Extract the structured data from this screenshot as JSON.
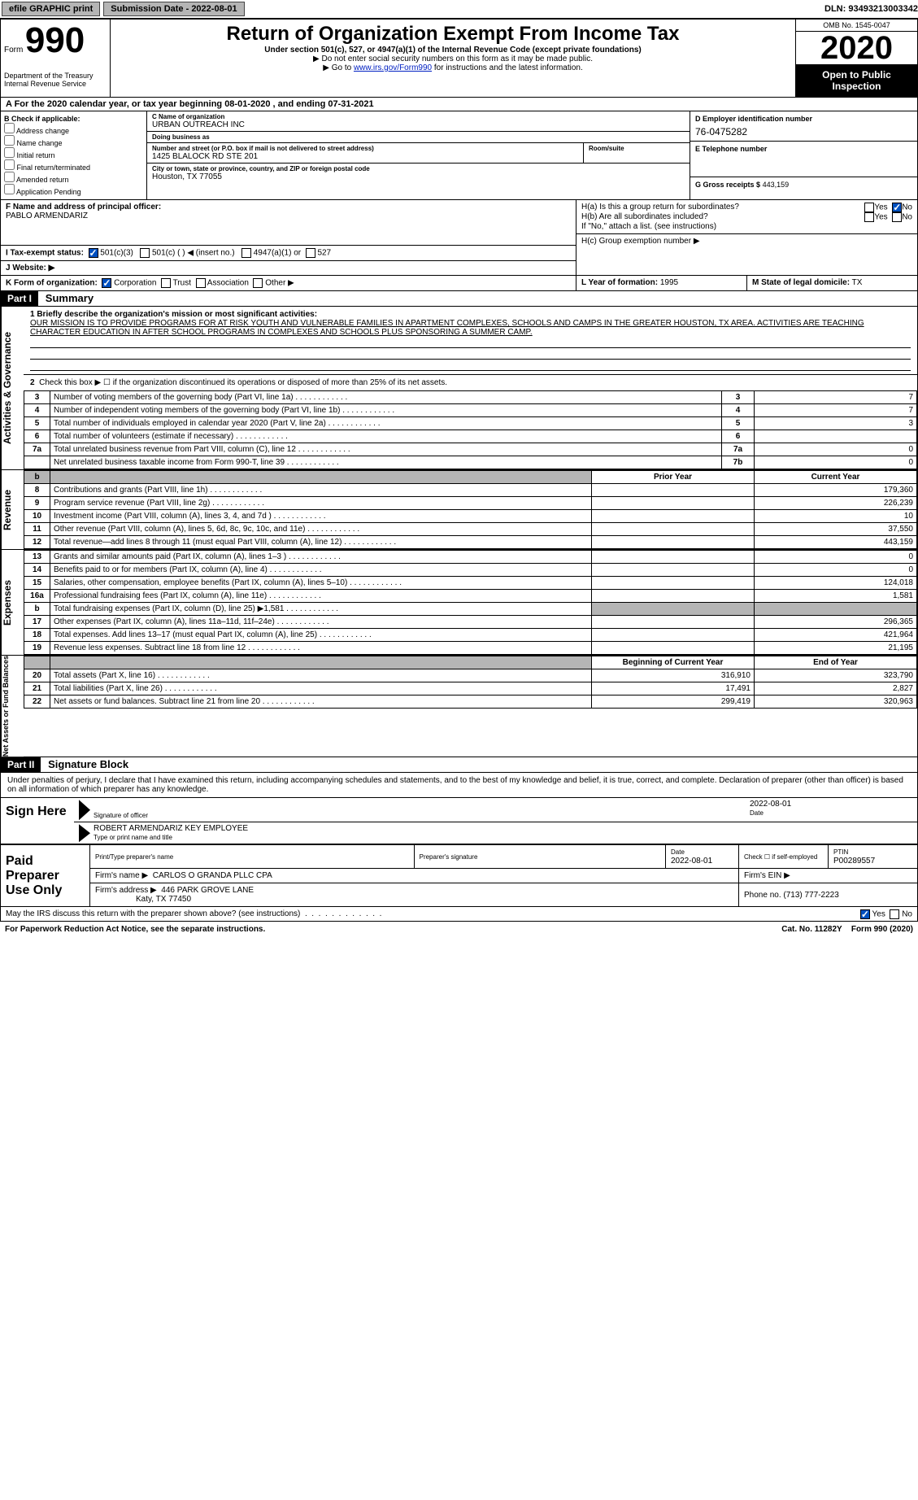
{
  "topbar": {
    "graphic_label": "efile GRAPHIC print",
    "submission_date_label": "Submission Date - 2022-08-01",
    "dln_label": "DLN: 93493213003342"
  },
  "header": {
    "form_word": "Form",
    "form_no": "990",
    "dept1": "Department of the Treasury",
    "dept2": "Internal Revenue Service",
    "title": "Return of Organization Exempt From Income Tax",
    "subtitle": "Under section 501(c), 527, or 4947(a)(1) of the Internal Revenue Code (except private foundations)",
    "note1": "▶ Do not enter social security numbers on this form as it may be made public.",
    "note2_pre": "▶ Go to ",
    "note2_link": "www.irs.gov/Form990",
    "note2_post": " for instructions and the latest information.",
    "omb": "OMB No. 1545-0047",
    "year": "2020",
    "open": "Open to Public Inspection"
  },
  "rowA": "A  For the 2020 calendar year, or tax year beginning 08-01-2020    , and ending 07-31-2021",
  "B": {
    "lbl": "B Check if applicable:",
    "items": [
      "Address change",
      "Name change",
      "Initial return",
      "Final return/terminated",
      "Amended return",
      "Application Pending"
    ]
  },
  "C": {
    "name_lbl": "C Name of organization",
    "name": "URBAN OUTREACH INC",
    "dba_lbl": "Doing business as",
    "dba": "",
    "addr_lbl": "Number and street (or P.O. box if mail is not delivered to street address)",
    "addr": "1425 BLALOCK RD STE 201",
    "room_lbl": "Room/suite",
    "city_lbl": "City or town, state or province, country, and ZIP or foreign postal code",
    "city": "Houston, TX  77055"
  },
  "D": {
    "ein_lbl": "D Employer identification number",
    "ein": "76-0475282",
    "phone_lbl": "E Telephone number",
    "gross_lbl": "G Gross receipts $",
    "gross": "443,159"
  },
  "F": {
    "lbl": "F  Name and address of principal officer:",
    "name": "PABLO ARMENDARIZ"
  },
  "H": {
    "a": "H(a)  Is this a group return for subordinates?",
    "b": "H(b)  Are all subordinates included?",
    "note": "If \"No,\" attach a list. (see instructions)",
    "c": "H(c)  Group exemption number ▶",
    "yes": "Yes",
    "no": "No"
  },
  "I": {
    "lbl": "I   Tax-exempt status:",
    "opts": [
      "501(c)(3)",
      "501(c) (  )  ◀ (insert no.)",
      "4947(a)(1) or",
      "527"
    ]
  },
  "J": {
    "lbl": "J   Website: ▶"
  },
  "K": {
    "lbl": "K Form of organization:",
    "opts": [
      "Corporation",
      "Trust",
      "Association",
      "Other ▶"
    ]
  },
  "L": {
    "lbl": "L Year of formation:",
    "val": "1995"
  },
  "M": {
    "lbl": "M State of legal domicile:",
    "val": "TX"
  },
  "part1": {
    "hdr": "Part I",
    "title": "Summary",
    "vtab1": "Activities & Governance",
    "vtab2": "Revenue",
    "vtab3": "Expenses",
    "vtab4": "Net Assets or Fund Balances",
    "mission_lbl": "1  Briefly describe the organization's mission or most significant activities:",
    "mission": "OUR MISSION IS TO PROVIDE PROGRAMS FOR AT RISK YOUTH AND VULNERABLE FAMILIES IN APARTMENT COMPLEXES, SCHOOLS AND CAMPS IN THE GREATER HOUSTON, TX AREA. ACTIVITIES ARE TEACHING CHARACTER EDUCATION IN AFTER SCHOOL PROGRAMS IN COMPLEXES AND SCHOOLS PLUS SPONSORING A SUMMER CAMP.",
    "line2": "Check this box ▶ ☐  if the organization discontinued its operations or disposed of more than 25% of its net assets.",
    "rows_ag": [
      {
        "n": "3",
        "d": "Number of voting members of the governing body (Part VI, line 1a)",
        "b": "3",
        "v": "7"
      },
      {
        "n": "4",
        "d": "Number of independent voting members of the governing body (Part VI, line 1b)",
        "b": "4",
        "v": "7"
      },
      {
        "n": "5",
        "d": "Total number of individuals employed in calendar year 2020 (Part V, line 2a)",
        "b": "5",
        "v": "3"
      },
      {
        "n": "6",
        "d": "Total number of volunteers (estimate if necessary)",
        "b": "6",
        "v": ""
      },
      {
        "n": "7a",
        "d": "Total unrelated business revenue from Part VIII, column (C), line 12",
        "b": "7a",
        "v": "0"
      },
      {
        "n": "",
        "d": "Net unrelated business taxable income from Form 990-T, line 39",
        "b": "7b",
        "v": "0"
      }
    ],
    "col_prior": "Prior Year",
    "col_current": "Current Year",
    "rows_rev": [
      {
        "n": "8",
        "d": "Contributions and grants (Part VIII, line 1h)",
        "p": "",
        "c": "179,360"
      },
      {
        "n": "9",
        "d": "Program service revenue (Part VIII, line 2g)",
        "p": "",
        "c": "226,239"
      },
      {
        "n": "10",
        "d": "Investment income (Part VIII, column (A), lines 3, 4, and 7d )",
        "p": "",
        "c": "10"
      },
      {
        "n": "11",
        "d": "Other revenue (Part VIII, column (A), lines 5, 6d, 8c, 9c, 10c, and 11e)",
        "p": "",
        "c": "37,550"
      },
      {
        "n": "12",
        "d": "Total revenue—add lines 8 through 11 (must equal Part VIII, column (A), line 12)",
        "p": "",
        "c": "443,159"
      }
    ],
    "rows_exp": [
      {
        "n": "13",
        "d": "Grants and similar amounts paid (Part IX, column (A), lines 1–3 )",
        "p": "",
        "c": "0"
      },
      {
        "n": "14",
        "d": "Benefits paid to or for members (Part IX, column (A), line 4)",
        "p": "",
        "c": "0"
      },
      {
        "n": "15",
        "d": "Salaries, other compensation, employee benefits (Part IX, column (A), lines 5–10)",
        "p": "",
        "c": "124,018"
      },
      {
        "n": "16a",
        "d": "Professional fundraising fees (Part IX, column (A), line 11e)",
        "p": "",
        "c": "1,581"
      },
      {
        "n": "b",
        "d": "Total fundraising expenses (Part IX, column (D), line 25) ▶1,581",
        "p": "shade",
        "c": "shade"
      },
      {
        "n": "17",
        "d": "Other expenses (Part IX, column (A), lines 11a–11d, 11f–24e)",
        "p": "",
        "c": "296,365"
      },
      {
        "n": "18",
        "d": "Total expenses. Add lines 13–17 (must equal Part IX, column (A), line 25)",
        "p": "",
        "c": "421,964"
      },
      {
        "n": "19",
        "d": "Revenue less expenses. Subtract line 18 from line 12",
        "p": "",
        "c": "21,195"
      }
    ],
    "col_begin": "Beginning of Current Year",
    "col_end": "End of Year",
    "rows_net": [
      {
        "n": "20",
        "d": "Total assets (Part X, line 16)",
        "p": "316,910",
        "c": "323,790"
      },
      {
        "n": "21",
        "d": "Total liabilities (Part X, line 26)",
        "p": "17,491",
        "c": "2,827"
      },
      {
        "n": "22",
        "d": "Net assets or fund balances. Subtract line 21 from line 20",
        "p": "299,419",
        "c": "320,963"
      }
    ]
  },
  "part2": {
    "hdr": "Part II",
    "title": "Signature Block",
    "intro": "Under penalties of perjury, I declare that I have examined this return, including accompanying schedules and statements, and to the best of my knowledge and belief, it is true, correct, and complete. Declaration of preparer (other than officer) is based on all information of which preparer has any knowledge.",
    "sign_lbl": "Sign Here",
    "sig_of": "Signature of officer",
    "sig_date": "2022-08-01",
    "date_lbl": "Date",
    "officer": "ROBERT ARMENDARIZ  KEY EMPLOYEE",
    "type_lbl": "Type or print name and title",
    "paid_lbl": "Paid Preparer Use Only",
    "prep_name_lbl": "Print/Type preparer's name",
    "prep_sig_lbl": "Preparer's signature",
    "prep_date_lbl": "Date",
    "prep_date": "2022-08-01",
    "check_lbl": "Check ☐ if self-employed",
    "ptin_lbl": "PTIN",
    "ptin": "P00289557",
    "firm_name_lbl": "Firm's name    ▶",
    "firm_name": "CARLOS O GRANDA PLLC CPA",
    "firm_ein_lbl": "Firm's EIN ▶",
    "firm_addr_lbl": "Firm's address ▶",
    "firm_addr1": "446 PARK GROVE LANE",
    "firm_addr2": "Katy, TX  77450",
    "phone_lbl": "Phone no.",
    "phone": "(713) 777-2223",
    "discuss": "May the IRS discuss this return with the preparer shown above? (see instructions)",
    "yes": "Yes",
    "no": "No"
  },
  "footer": {
    "pra": "For Paperwork Reduction Act Notice, see the separate instructions.",
    "cat": "Cat. No. 11282Y",
    "form": "Form 990 (2020)"
  }
}
